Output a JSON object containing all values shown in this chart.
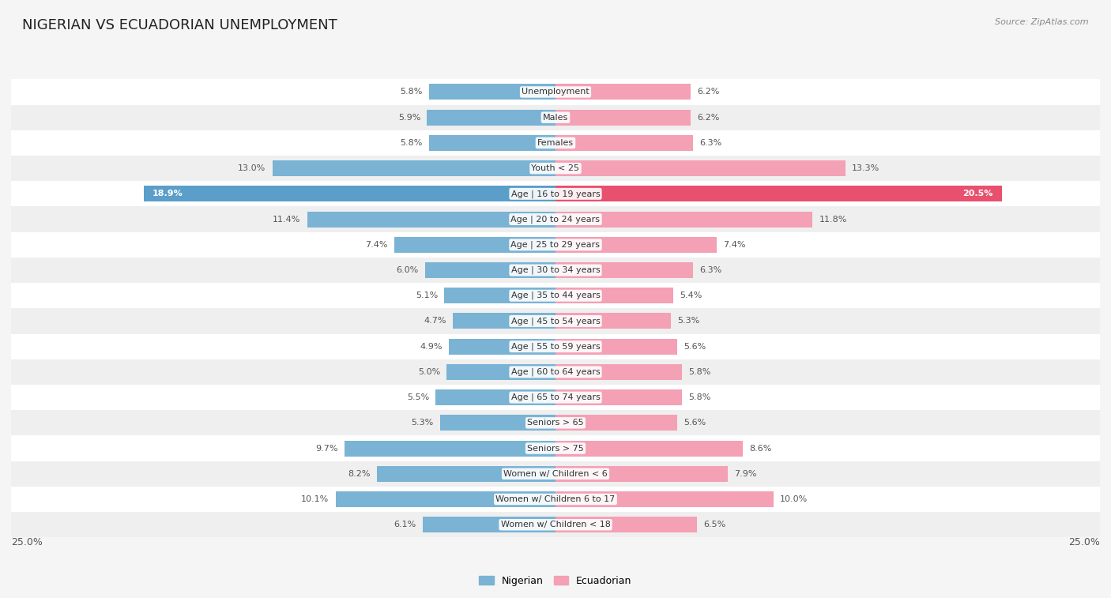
{
  "title": "NIGERIAN VS ECUADORIAN UNEMPLOYMENT",
  "source": "Source: ZipAtlas.com",
  "categories": [
    "Unemployment",
    "Males",
    "Females",
    "Youth < 25",
    "Age | 16 to 19 years",
    "Age | 20 to 24 years",
    "Age | 25 to 29 years",
    "Age | 30 to 34 years",
    "Age | 35 to 44 years",
    "Age | 45 to 54 years",
    "Age | 55 to 59 years",
    "Age | 60 to 64 years",
    "Age | 65 to 74 years",
    "Seniors > 65",
    "Seniors > 75",
    "Women w/ Children < 6",
    "Women w/ Children 6 to 17",
    "Women w/ Children < 18"
  ],
  "nigerian": [
    5.8,
    5.9,
    5.8,
    13.0,
    18.9,
    11.4,
    7.4,
    6.0,
    5.1,
    4.7,
    4.9,
    5.0,
    5.5,
    5.3,
    9.7,
    8.2,
    10.1,
    6.1
  ],
  "ecuadorian": [
    6.2,
    6.2,
    6.3,
    13.3,
    20.5,
    11.8,
    7.4,
    6.3,
    5.4,
    5.3,
    5.6,
    5.8,
    5.8,
    5.6,
    8.6,
    7.9,
    10.0,
    6.5
  ],
  "nigerian_color": "#7ab3d4",
  "ecuadorian_color": "#f4a0b5",
  "nigerian_highlight": "#5b9ec9",
  "ecuadorian_highlight": "#e8506e",
  "row_color_even": "#ffffff",
  "row_color_odd": "#efefef",
  "background_color": "#f5f5f5",
  "max_val": 25.0,
  "legend_nigerian": "Nigerian",
  "legend_ecuadorian": "Ecuadorian"
}
